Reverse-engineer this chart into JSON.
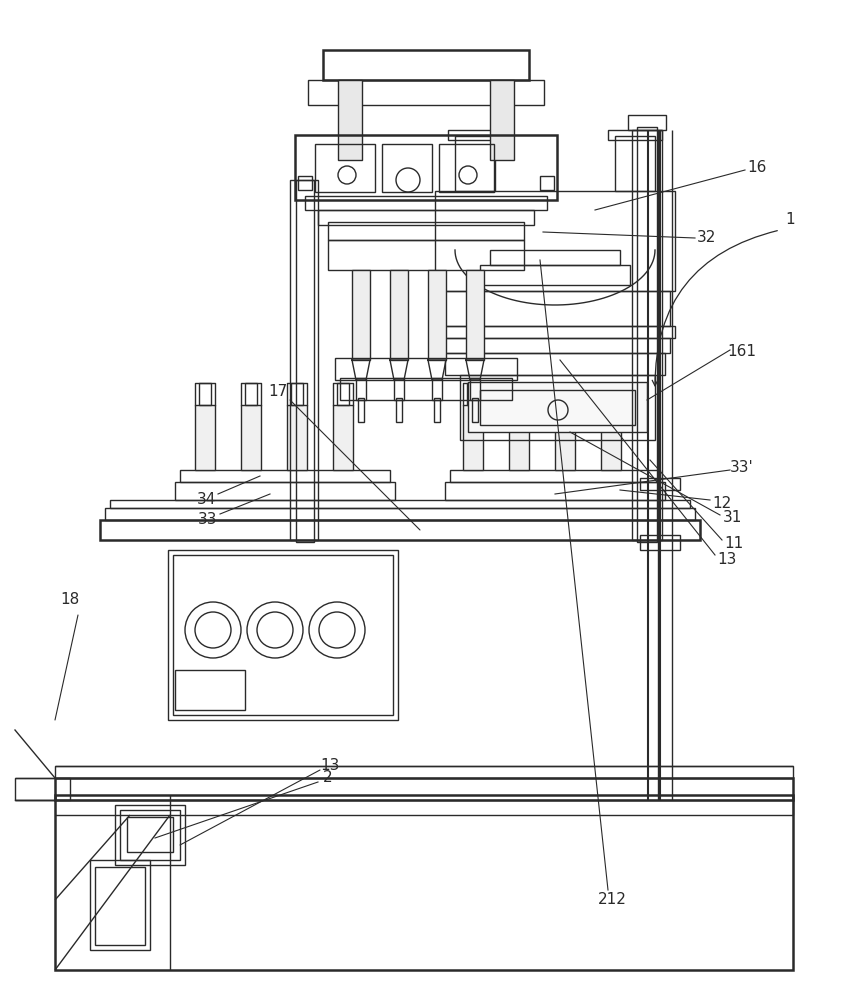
{
  "bg_color": "#ffffff",
  "line_color": "#2a2a2a",
  "lw": 1.0,
  "lw_thick": 1.8,
  "fontsize": 11
}
